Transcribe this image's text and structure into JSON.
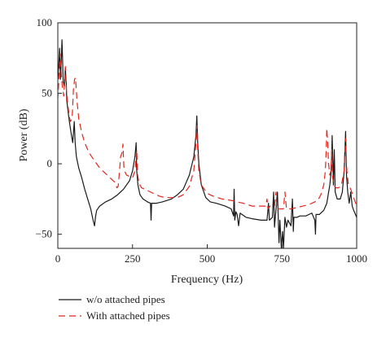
{
  "chart_data": {
    "type": "line",
    "title": "",
    "xlabel": "Frequency (Hz)",
    "ylabel": "Power (dB)",
    "xlim": [
      0,
      1000
    ],
    "ylim": [
      -60,
      100
    ],
    "xticks": [
      0,
      250,
      500,
      750,
      1000
    ],
    "yticks": [
      -50,
      0,
      50,
      100
    ],
    "xtick_labels": [
      "0",
      "250",
      "500",
      "750",
      "1000"
    ],
    "ytick_labels": [
      "−50",
      "0",
      "50",
      "100"
    ],
    "grid": false,
    "legend_position": "bottom-outside",
    "series": [
      {
        "name": "w/o attached pipes",
        "color": "#1a1a1a",
        "style": "solid",
        "points": [
          [
            0,
            60
          ],
          [
            3,
            70
          ],
          [
            6,
            82
          ],
          [
            9,
            60
          ],
          [
            12,
            76
          ],
          [
            14,
            88
          ],
          [
            16,
            73
          ],
          [
            18,
            58
          ],
          [
            22,
            55
          ],
          [
            25,
            68
          ],
          [
            28,
            58
          ],
          [
            30,
            45
          ],
          [
            35,
            36
          ],
          [
            40,
            28
          ],
          [
            45,
            21
          ],
          [
            50,
            15
          ],
          [
            55,
            30
          ],
          [
            58,
            15
          ],
          [
            62,
            5
          ],
          [
            70,
            -3
          ],
          [
            80,
            -10
          ],
          [
            90,
            -18
          ],
          [
            100,
            -25
          ],
          [
            110,
            -32
          ],
          [
            118,
            -40
          ],
          [
            123,
            -44
          ],
          [
            126,
            -38
          ],
          [
            130,
            -33
          ],
          [
            140,
            -30
          ],
          [
            160,
            -27
          ],
          [
            180,
            -25
          ],
          [
            200,
            -22
          ],
          [
            220,
            -18
          ],
          [
            240,
            -12
          ],
          [
            250,
            -5
          ],
          [
            258,
            5
          ],
          [
            262,
            15
          ],
          [
            264,
            -5
          ],
          [
            268,
            -15
          ],
          [
            275,
            -22
          ],
          [
            285,
            -25
          ],
          [
            300,
            -27
          ],
          [
            310,
            -28
          ],
          [
            312,
            -40
          ],
          [
            314,
            -28
          ],
          [
            330,
            -28
          ],
          [
            350,
            -27
          ],
          [
            380,
            -25
          ],
          [
            400,
            -22
          ],
          [
            420,
            -18
          ],
          [
            440,
            -8
          ],
          [
            455,
            5
          ],
          [
            462,
            20
          ],
          [
            465,
            34
          ],
          [
            468,
            15
          ],
          [
            472,
            0
          ],
          [
            480,
            -15
          ],
          [
            495,
            -24
          ],
          [
            510,
            -27
          ],
          [
            530,
            -28
          ],
          [
            560,
            -30
          ],
          [
            580,
            -32
          ],
          [
            588,
            -37
          ],
          [
            590,
            -18
          ],
          [
            592,
            -40
          ],
          [
            596,
            -34
          ],
          [
            600,
            -36
          ],
          [
            605,
            -44
          ],
          [
            610,
            -35
          ],
          [
            630,
            -38
          ],
          [
            650,
            -39
          ],
          [
            680,
            -40
          ],
          [
            700,
            -40
          ],
          [
            705,
            -28
          ],
          [
            708,
            -40
          ],
          [
            718,
            -38
          ],
          [
            722,
            -20
          ],
          [
            725,
            -45
          ],
          [
            735,
            -20
          ],
          [
            740,
            -56
          ],
          [
            743,
            -40
          ],
          [
            748,
            -60
          ],
          [
            752,
            -48
          ],
          [
            755,
            -60
          ],
          [
            760,
            -38
          ],
          [
            765,
            -45
          ],
          [
            770,
            -40
          ],
          [
            780,
            -44
          ],
          [
            785,
            -25
          ],
          [
            788,
            -48
          ],
          [
            790,
            -38
          ],
          [
            800,
            -38
          ],
          [
            810,
            -37
          ],
          [
            830,
            -37
          ],
          [
            850,
            -35
          ],
          [
            860,
            -40
          ],
          [
            862,
            -50
          ],
          [
            864,
            -36
          ],
          [
            875,
            -36
          ],
          [
            890,
            -33
          ],
          [
            900,
            -28
          ],
          [
            910,
            -15
          ],
          [
            915,
            -5
          ],
          [
            918,
            20
          ],
          [
            922,
            -15
          ],
          [
            925,
            10
          ],
          [
            928,
            -20
          ],
          [
            935,
            -25
          ],
          [
            945,
            -25
          ],
          [
            952,
            -20
          ],
          [
            958,
            -5
          ],
          [
            963,
            23
          ],
          [
            966,
            -8
          ],
          [
            970,
            -20
          ],
          [
            975,
            -28
          ],
          [
            980,
            -20
          ],
          [
            985,
            -30
          ],
          [
            990,
            -33
          ],
          [
            996,
            -36
          ],
          [
            1000,
            -38
          ]
        ]
      },
      {
        "name": "With attached pipes",
        "color": "#e0261d",
        "style": "dashed",
        "points": [
          [
            0,
            45
          ],
          [
            5,
            65
          ],
          [
            8,
            78
          ],
          [
            12,
            62
          ],
          [
            15,
            55
          ],
          [
            20,
            48
          ],
          [
            25,
            69
          ],
          [
            28,
            54
          ],
          [
            32,
            45
          ],
          [
            38,
            34
          ],
          [
            42,
            30
          ],
          [
            48,
            32
          ],
          [
            52,
            52
          ],
          [
            56,
            60
          ],
          [
            59,
            61
          ],
          [
            64,
            45
          ],
          [
            70,
            32
          ],
          [
            80,
            22
          ],
          [
            90,
            15
          ],
          [
            100,
            10
          ],
          [
            110,
            6
          ],
          [
            120,
            3
          ],
          [
            130,
            0
          ],
          [
            140,
            -3
          ],
          [
            150,
            -5
          ],
          [
            160,
            -7
          ],
          [
            170,
            -9
          ],
          [
            180,
            -11
          ],
          [
            190,
            -13
          ],
          [
            198,
            -17
          ],
          [
            202,
            -16
          ],
          [
            205,
            -9
          ],
          [
            210,
            5
          ],
          [
            215,
            8
          ],
          [
            218,
            14
          ],
          [
            221,
            -2
          ],
          [
            225,
            -6
          ],
          [
            230,
            -8
          ],
          [
            240,
            -9
          ],
          [
            250,
            -10
          ],
          [
            258,
            -5
          ],
          [
            264,
            10
          ],
          [
            267,
            -8
          ],
          [
            272,
            -14
          ],
          [
            280,
            -17
          ],
          [
            300,
            -19
          ],
          [
            320,
            -21
          ],
          [
            340,
            -23
          ],
          [
            360,
            -24
          ],
          [
            380,
            -24
          ],
          [
            400,
            -24
          ],
          [
            420,
            -22
          ],
          [
            440,
            -16
          ],
          [
            455,
            -5
          ],
          [
            462,
            15
          ],
          [
            465,
            27
          ],
          [
            468,
            10
          ],
          [
            472,
            -5
          ],
          [
            480,
            -15
          ],
          [
            500,
            -21
          ],
          [
            520,
            -23
          ],
          [
            550,
            -25
          ],
          [
            580,
            -26
          ],
          [
            600,
            -27
          ],
          [
            620,
            -28
          ],
          [
            650,
            -30
          ],
          [
            680,
            -30
          ],
          [
            695,
            -30
          ],
          [
            700,
            -25
          ],
          [
            703,
            -32
          ],
          [
            710,
            -30
          ],
          [
            725,
            -30
          ],
          [
            730,
            -20
          ],
          [
            733,
            -32
          ],
          [
            745,
            -32
          ],
          [
            755,
            -32
          ],
          [
            760,
            -20
          ],
          [
            765,
            -32
          ],
          [
            780,
            -32
          ],
          [
            800,
            -31
          ],
          [
            820,
            -30
          ],
          [
            840,
            -29
          ],
          [
            860,
            -27
          ],
          [
            870,
            -26
          ],
          [
            880,
            -22
          ],
          [
            890,
            -15
          ],
          [
            895,
            -5
          ],
          [
            898,
            10
          ],
          [
            900,
            25
          ],
          [
            903,
            15
          ],
          [
            906,
            0
          ],
          [
            910,
            -8
          ],
          [
            914,
            -5
          ],
          [
            917,
            10
          ],
          [
            920,
            -10
          ],
          [
            924,
            -15
          ],
          [
            930,
            -17
          ],
          [
            940,
            -17
          ],
          [
            950,
            -14
          ],
          [
            958,
            -5
          ],
          [
            963,
            18
          ],
          [
            967,
            -5
          ],
          [
            972,
            -14
          ],
          [
            980,
            -18
          ],
          [
            990,
            -24
          ],
          [
            1000,
            -30
          ]
        ]
      }
    ]
  }
}
